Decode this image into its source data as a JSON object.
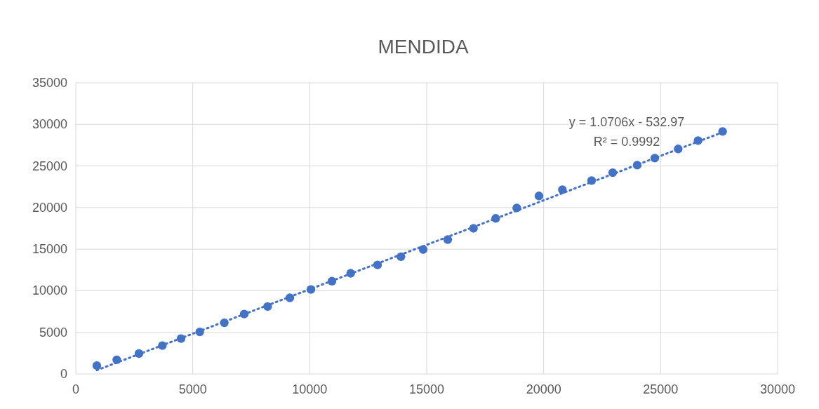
{
  "chart_data": {
    "type": "scatter",
    "title": "MENDIDA",
    "series": [
      {
        "color": "#4472c4",
        "marker": "circle",
        "x": [
          900,
          1750,
          2700,
          3700,
          4500,
          5300,
          6350,
          7200,
          8200,
          9150,
          10050,
          10950,
          11750,
          12900,
          13900,
          14850,
          15900,
          17000,
          17950,
          18850,
          19800,
          20800,
          22050,
          22950,
          24000,
          24750,
          25750,
          26600,
          27650
        ],
        "values": [
          1000,
          1700,
          2450,
          3400,
          4250,
          5050,
          6150,
          7200,
          8100,
          9150,
          10150,
          11150,
          12100,
          13100,
          14100,
          14950,
          16150,
          17500,
          18700,
          19950,
          21400,
          22150,
          23250,
          24200,
          25100,
          25950,
          27050,
          28050,
          29150
        ]
      },
      {
        "type": "line",
        "color": "#4472c4",
        "marker": "none",
        "line_style": "dotted",
        "x": [
          900,
          27650
        ],
        "values": [
          450,
          29050
        ]
      }
    ],
    "xlim": [
      0,
      30000
    ],
    "xticks": [
      0,
      5000,
      10000,
      15000,
      20000,
      25000,
      30000
    ],
    "ylim": [
      0,
      35000
    ],
    "yticks": [
      0,
      5000,
      10000,
      15000,
      20000,
      25000,
      30000,
      35000
    ],
    "grid": true,
    "annotations": [
      "y = 1.0706x - 532.97",
      "R² = 0.9992"
    ]
  }
}
